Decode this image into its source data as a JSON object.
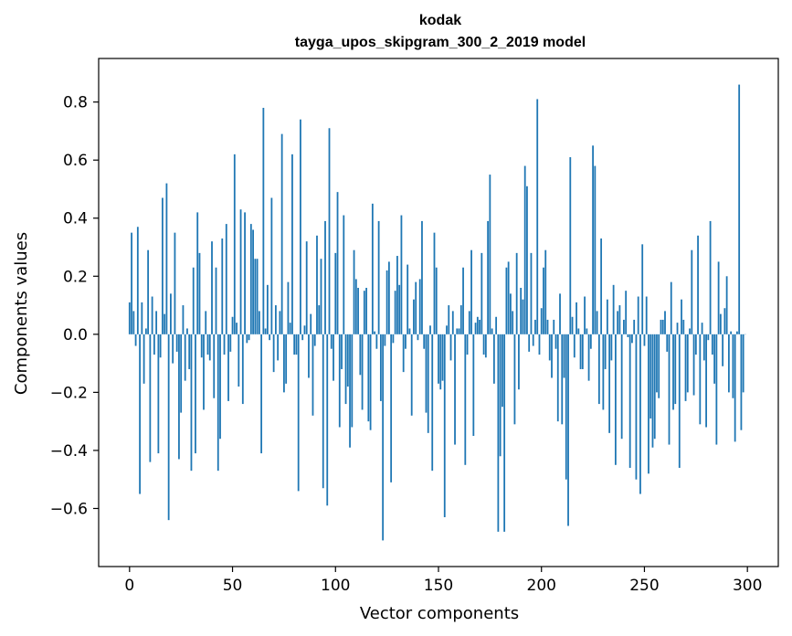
{
  "chart_data": {
    "type": "bar",
    "title": "kodak",
    "subtitle": "tayga_upos_skipgram_300_2_2019 model",
    "xlabel": "Vector components",
    "ylabel": "Components values",
    "xlim": [
      -15,
      315
    ],
    "ylim": [
      -0.8,
      0.95
    ],
    "xticks": [
      0,
      50,
      100,
      150,
      200,
      250,
      300
    ],
    "yticks": [
      -0.6,
      -0.4,
      -0.2,
      0.0,
      0.2,
      0.4,
      0.6,
      0.8
    ],
    "xtick_labels": [
      "0",
      "50",
      "100",
      "150",
      "200",
      "250",
      "300"
    ],
    "ytick_labels": [
      "−0.6",
      "−0.4",
      "−0.2",
      "0.0",
      "0.2",
      "0.4",
      "0.6",
      "0.8"
    ],
    "grid": false,
    "bar_color": "#1f77b4",
    "x": [
      0,
      1,
      2,
      3,
      4,
      5,
      6,
      7,
      8,
      9,
      10,
      11,
      12,
      13,
      14,
      15,
      16,
      17,
      18,
      19,
      20,
      21,
      22,
      23,
      24,
      25,
      26,
      27,
      28,
      29,
      30,
      31,
      32,
      33,
      34,
      35,
      36,
      37,
      38,
      39,
      40,
      41,
      42,
      43,
      44,
      45,
      46,
      47,
      48,
      49,
      50,
      51,
      52,
      53,
      54,
      55,
      56,
      57,
      58,
      59,
      60,
      61,
      62,
      63,
      64,
      65,
      66,
      67,
      68,
      69,
      70,
      71,
      72,
      73,
      74,
      75,
      76,
      77,
      78,
      79,
      80,
      81,
      82,
      83,
      84,
      85,
      86,
      87,
      88,
      89,
      90,
      91,
      92,
      93,
      94,
      95,
      96,
      97,
      98,
      99,
      100,
      101,
      102,
      103,
      104,
      105,
      106,
      107,
      108,
      109,
      110,
      111,
      112,
      113,
      114,
      115,
      116,
      117,
      118,
      119,
      120,
      121,
      122,
      123,
      124,
      125,
      126,
      127,
      128,
      129,
      130,
      131,
      132,
      133,
      134,
      135,
      136,
      137,
      138,
      139,
      140,
      141,
      142,
      143,
      144,
      145,
      146,
      147,
      148,
      149,
      150,
      151,
      152,
      153,
      154,
      155,
      156,
      157,
      158,
      159,
      160,
      161,
      162,
      163,
      164,
      165,
      166,
      167,
      168,
      169,
      170,
      171,
      172,
      173,
      174,
      175,
      176,
      177,
      178,
      179,
      180,
      181,
      182,
      183,
      184,
      185,
      186,
      187,
      188,
      189,
      190,
      191,
      192,
      193,
      194,
      195,
      196,
      197,
      198,
      199,
      200,
      201,
      202,
      203,
      204,
      205,
      206,
      207,
      208,
      209,
      210,
      211,
      212,
      213,
      214,
      215,
      216,
      217,
      218,
      219,
      220,
      221,
      222,
      223,
      224,
      225,
      226,
      227,
      228,
      229,
      230,
      231,
      232,
      233,
      234,
      235,
      236,
      237,
      238,
      239,
      240,
      241,
      242,
      243,
      244,
      245,
      246,
      247,
      248,
      249,
      250,
      251,
      252,
      253,
      254,
      255,
      256,
      257,
      258,
      259,
      260,
      261,
      262,
      263,
      264,
      265,
      266,
      267,
      268,
      269,
      270,
      271,
      272,
      273,
      274,
      275,
      276,
      277,
      278,
      279,
      280,
      281,
      282,
      283,
      284,
      285,
      286,
      287,
      288,
      289,
      290,
      291,
      292,
      293,
      294,
      295,
      296,
      297,
      298,
      299
    ],
    "values": [
      0.11,
      0.35,
      0.08,
      -0.04,
      0.37,
      -0.55,
      0.11,
      -0.17,
      0.02,
      0.29,
      -0.44,
      0.13,
      -0.07,
      0.08,
      -0.41,
      -0.08,
      0.47,
      0.07,
      0.52,
      -0.64,
      0.14,
      -0.1,
      0.35,
      -0.06,
      -0.43,
      -0.27,
      0.1,
      -0.16,
      0.02,
      -0.12,
      -0.47,
      0.23,
      -0.41,
      0.42,
      0.28,
      -0.08,
      -0.26,
      0.08,
      -0.07,
      -0.09,
      0.32,
      -0.22,
      0.23,
      -0.47,
      -0.36,
      0.33,
      -0.07,
      0.38,
      -0.23,
      -0.06,
      0.06,
      0.62,
      0.04,
      -0.18,
      0.43,
      -0.24,
      0.42,
      -0.03,
      -0.02,
      0.38,
      0.36,
      0.26,
      0.26,
      0.08,
      -0.41,
      0.78,
      0.02,
      0.17,
      -0.02,
      0.47,
      -0.13,
      0.1,
      -0.09,
      0.08,
      0.69,
      -0.2,
      -0.17,
      0.18,
      0.04,
      0.62,
      -0.07,
      -0.07,
      -0.54,
      0.74,
      -0.02,
      0.03,
      0.32,
      -0.15,
      0.07,
      -0.28,
      -0.04,
      0.34,
      0.1,
      0.26,
      -0.53,
      0.39,
      -0.59,
      0.71,
      -0.05,
      -0.16,
      0.28,
      0.49,
      -0.32,
      -0.12,
      0.41,
      -0.24,
      -0.18,
      -0.39,
      -0.32,
      0.29,
      0.19,
      0.16,
      -0.14,
      -0.26,
      0.15,
      0.16,
      -0.3,
      -0.33,
      0.45,
      0.01,
      -0.05,
      0.39,
      -0.23,
      -0.71,
      -0.04,
      0.22,
      0.25,
      -0.51,
      -0.03,
      0.15,
      0.27,
      0.17,
      0.41,
      -0.13,
      -0.05,
      0.24,
      0.02,
      -0.28,
      0.12,
      0.18,
      -0.02,
      0.19,
      0.39,
      -0.05,
      -0.27,
      -0.34,
      0.03,
      -0.47,
      0.35,
      0.23,
      -0.17,
      -0.19,
      -0.16,
      -0.63,
      0.03,
      0.1,
      -0.09,
      0.08,
      -0.38,
      0.02,
      0.02,
      0.1,
      0.23,
      -0.45,
      -0.07,
      0.08,
      0.29,
      -0.35,
      0.04,
      0.06,
      0.05,
      0.28,
      -0.07,
      -0.08,
      0.39,
      0.55,
      0.02,
      -0.17,
      0.06,
      -0.68,
      -0.42,
      -0.25,
      -0.68,
      0.23,
      0.25,
      0.14,
      0.08,
      -0.31,
      0.28,
      -0.19,
      0.16,
      0.12,
      0.58,
      0.51,
      -0.06,
      0.28,
      -0.04,
      0.05,
      0.81,
      -0.07,
      0.09,
      0.23,
      0.29,
      0.05,
      -0.09,
      -0.15,
      0.05,
      -0.05,
      -0.3,
      0.14,
      -0.31,
      -0.15,
      -0.5,
      -0.66,
      0.61,
      0.06,
      -0.08,
      0.11,
      0.02,
      -0.12,
      -0.12,
      0.13,
      0.02,
      -0.16,
      -0.05,
      0.65,
      0.58,
      0.08,
      -0.24,
      0.33,
      -0.26,
      -0.12,
      0.12,
      -0.34,
      -0.09,
      0.17,
      -0.45,
      0.08,
      0.1,
      -0.36,
      0.05,
      0.15,
      -0.01,
      -0.46,
      -0.03,
      0.05,
      -0.5,
      0.13,
      -0.55,
      0.31,
      -0.04,
      0.13,
      -0.48,
      -0.29,
      -0.39,
      -0.36,
      -0.2,
      -0.22,
      0.05,
      0.05,
      0.08,
      -0.06,
      -0.38,
      0.18,
      -0.26,
      -0.24,
      0.04,
      -0.46,
      0.12,
      0.05,
      -0.23,
      -0.2,
      0.02,
      0.29,
      -0.21,
      -0.07,
      0.34,
      -0.31,
      0.04,
      -0.09,
      -0.32,
      -0.02,
      0.39,
      -0.07,
      -0.17,
      -0.38,
      0.25,
      0.07,
      -0.11,
      0.09,
      0.2,
      -0.2,
      0.01,
      -0.22,
      -0.37,
      0.01,
      0.86,
      -0.33,
      -0.2,
      0.0
    ]
  }
}
